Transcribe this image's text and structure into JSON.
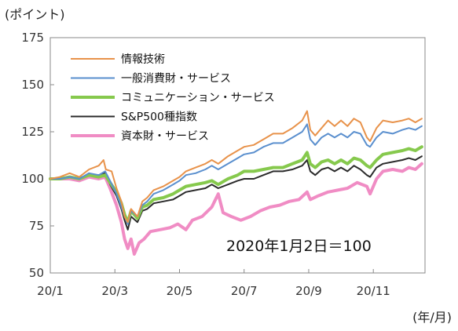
{
  "chart_data": {
    "type": "line",
    "y_unit_label": "(ポイント)",
    "x_unit_label": "(年/月)",
    "annotation": "2020年1月2日＝100",
    "ylim": [
      50,
      175
    ],
    "yticks": [
      50,
      75,
      100,
      125,
      150,
      175
    ],
    "xlim": [
      0,
      11.6
    ],
    "xticks": [
      {
        "x": 0,
        "label": "20/1"
      },
      {
        "x": 2,
        "label": "20/3"
      },
      {
        "x": 4,
        "label": "20/5"
      },
      {
        "x": 6,
        "label": "20/7"
      },
      {
        "x": 8,
        "label": "20/9"
      },
      {
        "x": 10,
        "label": "20/11"
      }
    ],
    "grid": false,
    "legend_position": "top-left",
    "series": [
      {
        "name": "情報技術",
        "color": "#e8924a",
        "width": 2,
        "points": [
          [
            0,
            100
          ],
          [
            0.3,
            101
          ],
          [
            0.6,
            103
          ],
          [
            0.9,
            101
          ],
          [
            1.2,
            105
          ],
          [
            1.5,
            107
          ],
          [
            1.65,
            110
          ],
          [
            1.72,
            105
          ],
          [
            1.9,
            104
          ],
          [
            2.05,
            95
          ],
          [
            2.2,
            88
          ],
          [
            2.3,
            80
          ],
          [
            2.4,
            77
          ],
          [
            2.5,
            84
          ],
          [
            2.7,
            80
          ],
          [
            2.85,
            88
          ],
          [
            3.0,
            90
          ],
          [
            3.2,
            94
          ],
          [
            3.5,
            96
          ],
          [
            3.8,
            99
          ],
          [
            4.0,
            101
          ],
          [
            4.2,
            104
          ],
          [
            4.5,
            106
          ],
          [
            4.8,
            108
          ],
          [
            5.0,
            110
          ],
          [
            5.2,
            108
          ],
          [
            5.5,
            112
          ],
          [
            5.8,
            115
          ],
          [
            6.0,
            117
          ],
          [
            6.3,
            118
          ],
          [
            6.6,
            121
          ],
          [
            6.9,
            124
          ],
          [
            7.2,
            124
          ],
          [
            7.5,
            127
          ],
          [
            7.8,
            131
          ],
          [
            7.95,
            136
          ],
          [
            8.05,
            126
          ],
          [
            8.2,
            123
          ],
          [
            8.4,
            127
          ],
          [
            8.6,
            131
          ],
          [
            8.8,
            128
          ],
          [
            9.0,
            131
          ],
          [
            9.2,
            128
          ],
          [
            9.4,
            132
          ],
          [
            9.6,
            130
          ],
          [
            9.8,
            122
          ],
          [
            9.9,
            120
          ],
          [
            10.1,
            127
          ],
          [
            10.3,
            131
          ],
          [
            10.6,
            130
          ],
          [
            10.9,
            131
          ],
          [
            11.1,
            132
          ],
          [
            11.3,
            130
          ],
          [
            11.5,
            132
          ]
        ]
      },
      {
        "name": "一般消費財・サービス",
        "color": "#5a8fce",
        "width": 2,
        "points": [
          [
            0,
            100
          ],
          [
            0.3,
            100
          ],
          [
            0.6,
            101
          ],
          [
            0.9,
            100
          ],
          [
            1.2,
            103
          ],
          [
            1.5,
            102
          ],
          [
            1.7,
            104
          ],
          [
            1.85,
            99
          ],
          [
            2.05,
            92
          ],
          [
            2.2,
            85
          ],
          [
            2.3,
            80
          ],
          [
            2.4,
            76
          ],
          [
            2.5,
            83
          ],
          [
            2.7,
            80
          ],
          [
            2.85,
            86
          ],
          [
            3.0,
            88
          ],
          [
            3.2,
            92
          ],
          [
            3.5,
            94
          ],
          [
            3.8,
            97
          ],
          [
            4.0,
            99
          ],
          [
            4.2,
            102
          ],
          [
            4.5,
            103
          ],
          [
            4.8,
            105
          ],
          [
            5.0,
            107
          ],
          [
            5.2,
            105
          ],
          [
            5.5,
            108
          ],
          [
            5.8,
            111
          ],
          [
            6.0,
            113
          ],
          [
            6.3,
            114
          ],
          [
            6.6,
            117
          ],
          [
            6.9,
            119
          ],
          [
            7.2,
            119
          ],
          [
            7.5,
            122
          ],
          [
            7.8,
            125
          ],
          [
            7.95,
            129
          ],
          [
            8.05,
            121
          ],
          [
            8.2,
            118
          ],
          [
            8.4,
            122
          ],
          [
            8.6,
            124
          ],
          [
            8.8,
            122
          ],
          [
            9.0,
            124
          ],
          [
            9.2,
            122
          ],
          [
            9.4,
            125
          ],
          [
            9.6,
            124
          ],
          [
            9.8,
            118
          ],
          [
            9.9,
            117
          ],
          [
            10.1,
            122
          ],
          [
            10.3,
            125
          ],
          [
            10.6,
            124
          ],
          [
            10.9,
            126
          ],
          [
            11.1,
            127
          ],
          [
            11.3,
            126
          ],
          [
            11.5,
            128
          ]
        ]
      },
      {
        "name": "コミュニケーション・サービス",
        "color": "#86c94d",
        "width": 4,
        "points": [
          [
            0,
            100
          ],
          [
            0.3,
            100
          ],
          [
            0.6,
            101
          ],
          [
            0.9,
            100
          ],
          [
            1.2,
            102
          ],
          [
            1.5,
            101
          ],
          [
            1.7,
            102
          ],
          [
            1.85,
            98
          ],
          [
            2.05,
            93
          ],
          [
            2.2,
            87
          ],
          [
            2.3,
            81
          ],
          [
            2.4,
            77
          ],
          [
            2.5,
            83
          ],
          [
            2.7,
            79
          ],
          [
            2.85,
            85
          ],
          [
            3.0,
            86
          ],
          [
            3.2,
            89
          ],
          [
            3.5,
            90
          ],
          [
            3.8,
            92
          ],
          [
            4.0,
            94
          ],
          [
            4.2,
            96
          ],
          [
            4.5,
            97
          ],
          [
            4.8,
            98
          ],
          [
            5.0,
            99
          ],
          [
            5.2,
            97
          ],
          [
            5.5,
            100
          ],
          [
            5.8,
            102
          ],
          [
            6.0,
            104
          ],
          [
            6.3,
            104
          ],
          [
            6.6,
            105
          ],
          [
            6.9,
            106
          ],
          [
            7.2,
            106
          ],
          [
            7.5,
            108
          ],
          [
            7.8,
            110
          ],
          [
            7.95,
            114
          ],
          [
            8.05,
            108
          ],
          [
            8.2,
            106
          ],
          [
            8.4,
            109
          ],
          [
            8.6,
            110
          ],
          [
            8.8,
            108
          ],
          [
            9.0,
            110
          ],
          [
            9.2,
            108
          ],
          [
            9.4,
            111
          ],
          [
            9.6,
            110
          ],
          [
            9.8,
            107
          ],
          [
            9.9,
            106
          ],
          [
            10.1,
            110
          ],
          [
            10.3,
            113
          ],
          [
            10.6,
            114
          ],
          [
            10.9,
            115
          ],
          [
            11.1,
            116
          ],
          [
            11.3,
            115
          ],
          [
            11.5,
            117
          ]
        ]
      },
      {
        "name": "S&P500種指数",
        "color": "#2b2b2b",
        "width": 2,
        "points": [
          [
            0,
            100
          ],
          [
            0.3,
            100
          ],
          [
            0.6,
            101
          ],
          [
            0.9,
            100
          ],
          [
            1.2,
            102
          ],
          [
            1.5,
            102
          ],
          [
            1.7,
            103
          ],
          [
            1.85,
            97
          ],
          [
            2.05,
            91
          ],
          [
            2.2,
            84
          ],
          [
            2.3,
            78
          ],
          [
            2.4,
            73
          ],
          [
            2.5,
            80
          ],
          [
            2.7,
            77
          ],
          [
            2.85,
            83
          ],
          [
            3.0,
            84
          ],
          [
            3.2,
            87
          ],
          [
            3.5,
            88
          ],
          [
            3.8,
            89
          ],
          [
            4.0,
            91
          ],
          [
            4.2,
            93
          ],
          [
            4.5,
            94
          ],
          [
            4.8,
            95
          ],
          [
            5.0,
            97
          ],
          [
            5.2,
            95
          ],
          [
            5.5,
            97
          ],
          [
            5.8,
            99
          ],
          [
            6.0,
            100
          ],
          [
            6.3,
            100
          ],
          [
            6.6,
            102
          ],
          [
            6.9,
            104
          ],
          [
            7.2,
            104
          ],
          [
            7.5,
            105
          ],
          [
            7.8,
            107
          ],
          [
            7.95,
            110
          ],
          [
            8.05,
            104
          ],
          [
            8.2,
            102
          ],
          [
            8.4,
            105
          ],
          [
            8.6,
            106
          ],
          [
            8.8,
            104
          ],
          [
            9.0,
            106
          ],
          [
            9.2,
            104
          ],
          [
            9.4,
            107
          ],
          [
            9.6,
            105
          ],
          [
            9.8,
            102
          ],
          [
            9.9,
            101
          ],
          [
            10.1,
            106
          ],
          [
            10.3,
            108
          ],
          [
            10.6,
            109
          ],
          [
            10.9,
            110
          ],
          [
            11.1,
            111
          ],
          [
            11.3,
            110
          ],
          [
            11.5,
            112
          ]
        ]
      },
      {
        "name": "資本財・サービス",
        "color": "#f08cc4",
        "width": 4,
        "points": [
          [
            0,
            100
          ],
          [
            0.3,
            100
          ],
          [
            0.6,
            100
          ],
          [
            0.9,
            99
          ],
          [
            1.2,
            101
          ],
          [
            1.5,
            100
          ],
          [
            1.7,
            101
          ],
          [
            1.85,
            95
          ],
          [
            2.05,
            86
          ],
          [
            2.2,
            77
          ],
          [
            2.3,
            68
          ],
          [
            2.4,
            63
          ],
          [
            2.5,
            68
          ],
          [
            2.6,
            60
          ],
          [
            2.75,
            66
          ],
          [
            2.9,
            68
          ],
          [
            3.1,
            72
          ],
          [
            3.4,
            73
          ],
          [
            3.7,
            74
          ],
          [
            3.95,
            76
          ],
          [
            4.2,
            73
          ],
          [
            4.4,
            78
          ],
          [
            4.7,
            80
          ],
          [
            5.0,
            85
          ],
          [
            5.2,
            92
          ],
          [
            5.35,
            82
          ],
          [
            5.6,
            80
          ],
          [
            5.9,
            78
          ],
          [
            6.2,
            80
          ],
          [
            6.5,
            83
          ],
          [
            6.8,
            85
          ],
          [
            7.1,
            86
          ],
          [
            7.4,
            88
          ],
          [
            7.7,
            89
          ],
          [
            7.95,
            93
          ],
          [
            8.05,
            89
          ],
          [
            8.3,
            91
          ],
          [
            8.6,
            93
          ],
          [
            8.9,
            94
          ],
          [
            9.2,
            95
          ],
          [
            9.5,
            98
          ],
          [
            9.8,
            96
          ],
          [
            9.9,
            92
          ],
          [
            10.1,
            100
          ],
          [
            10.3,
            104
          ],
          [
            10.6,
            105
          ],
          [
            10.9,
            104
          ],
          [
            11.1,
            106
          ],
          [
            11.3,
            105
          ],
          [
            11.5,
            108
          ]
        ]
      }
    ]
  }
}
